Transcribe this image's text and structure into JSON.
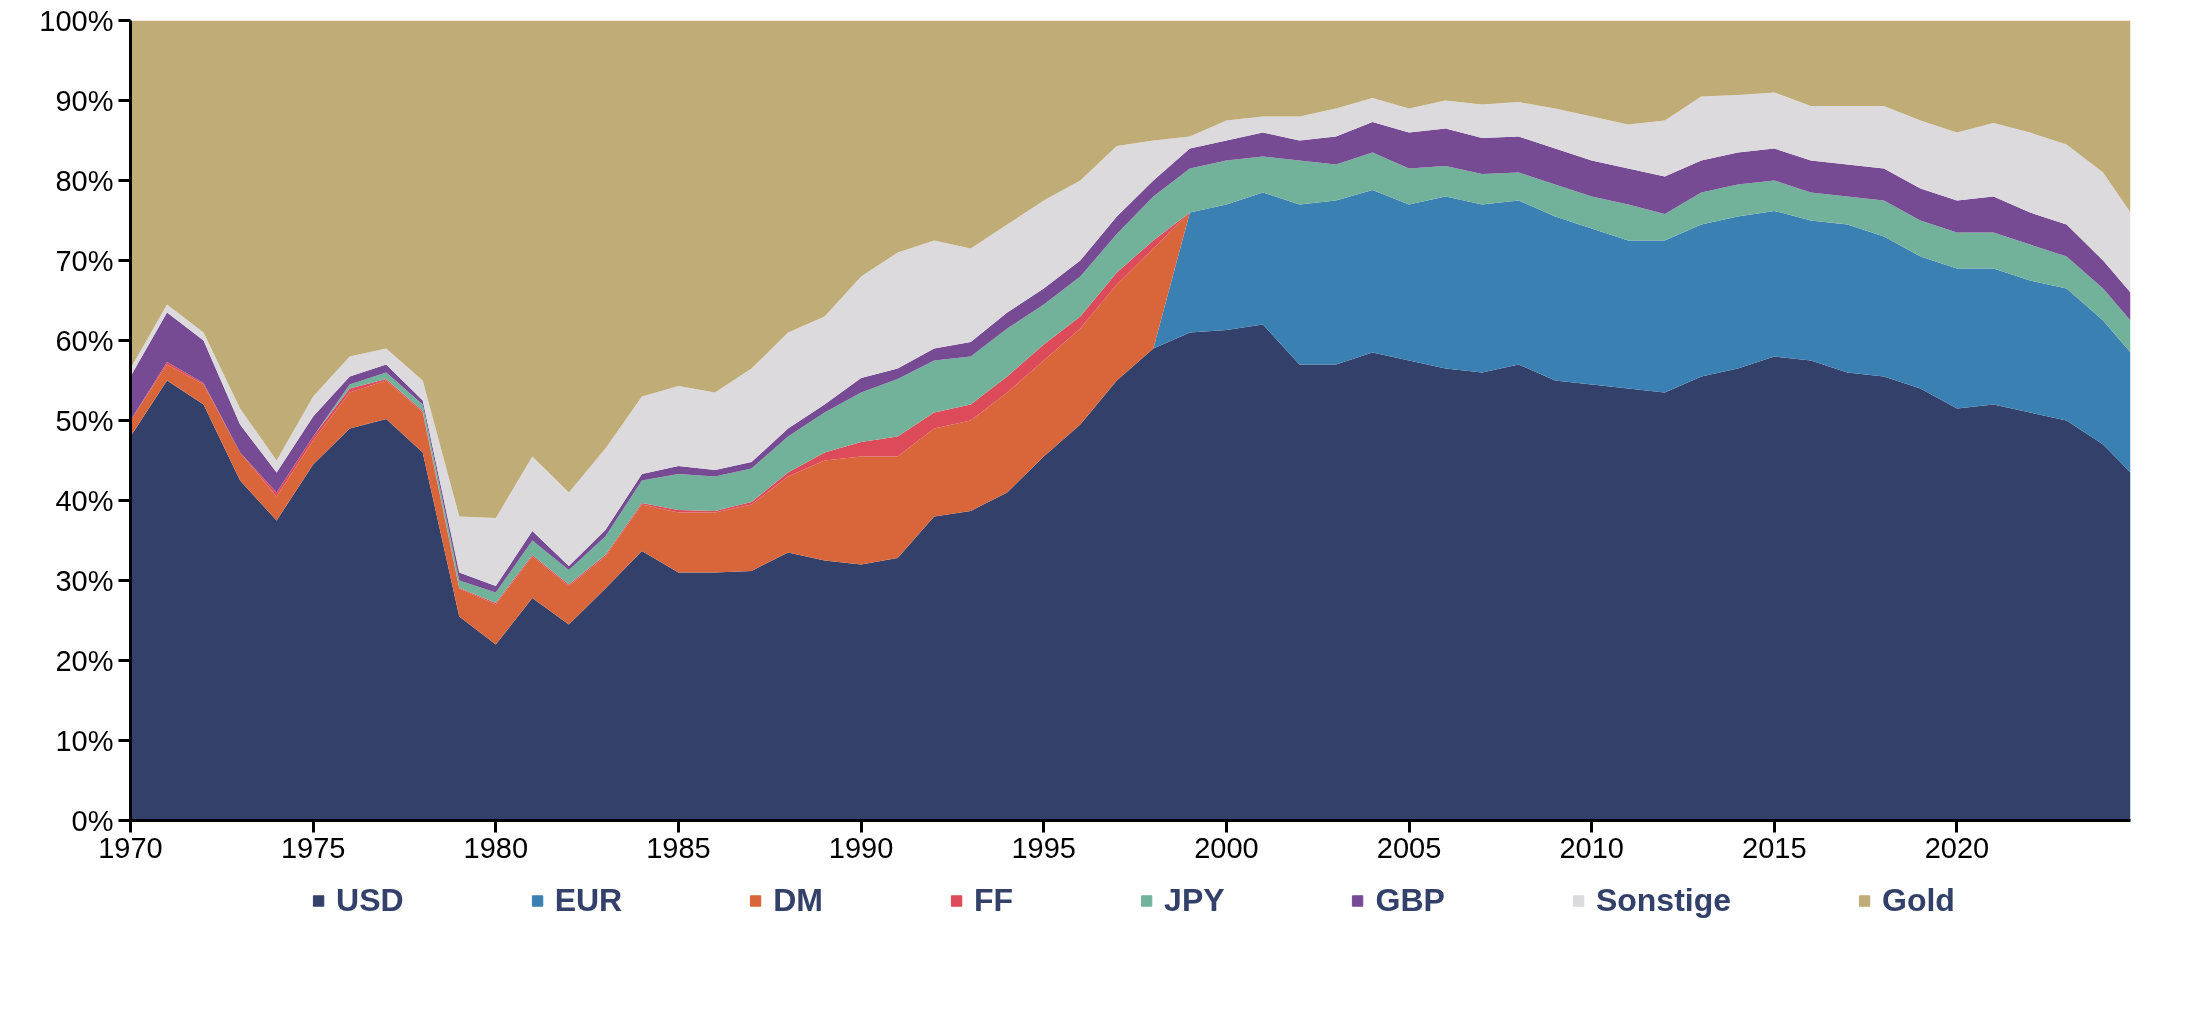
{
  "chart_data": {
    "type": "area",
    "stacked": true,
    "legend": "bottom",
    "grid": false,
    "x": [
      1970,
      1971,
      1972,
      1973,
      1974,
      1975,
      1976,
      1977,
      1978,
      1979,
      1980,
      1981,
      1982,
      1983,
      1984,
      1985,
      1986,
      1987,
      1988,
      1989,
      1990,
      1991,
      1992,
      1993,
      1994,
      1995,
      1996,
      1997,
      1998,
      1999,
      2000,
      2001,
      2002,
      2003,
      2004,
      2005,
      2006,
      2007,
      2008,
      2009,
      2010,
      2011,
      2012,
      2013,
      2014,
      2015,
      2016,
      2017,
      2018,
      2019,
      2020,
      2021,
      2022,
      2023,
      2024,
      2024.75
    ],
    "xlim": [
      1970,
      2024.75
    ],
    "xticks": [
      1970,
      1975,
      1980,
      1985,
      1990,
      1995,
      2000,
      2005,
      2010,
      2015,
      2020
    ],
    "ylim": [
      0,
      100
    ],
    "yticks": [
      {
        "value": 0,
        "label": "0%"
      },
      {
        "value": 10,
        "label": "10%"
      },
      {
        "value": 20,
        "label": "20%"
      },
      {
        "value": 30,
        "label": "30%"
      },
      {
        "value": 40,
        "label": "40%"
      },
      {
        "value": 50,
        "label": "50%"
      },
      {
        "value": 60,
        "label": "60%"
      },
      {
        "value": 70,
        "label": "70%"
      },
      {
        "value": 80,
        "label": "80%"
      },
      {
        "value": 90,
        "label": "90%"
      },
      {
        "value": 100,
        "label": "100%"
      }
    ],
    "series": [
      {
        "name": "USD",
        "color": "#33416a",
        "values": [
          48,
          55,
          52,
          42.5,
          37.5,
          44.5,
          49,
          50.2,
          46,
          25.5,
          22,
          27.8,
          24.5,
          29,
          33.7,
          31,
          31,
          31.2,
          33.5,
          32.5,
          32,
          32.8,
          38,
          38.7,
          41,
          45.5,
          49.5,
          55,
          59,
          61,
          61.3,
          62,
          57,
          57,
          58.5,
          57.5,
          56.5,
          56,
          57,
          55,
          54.5,
          54,
          53.5,
          55.5,
          56.5,
          58,
          57.5,
          56,
          55.5,
          54,
          51.5,
          52,
          51,
          50,
          47,
          43.5
        ]
      },
      {
        "name": "EUR",
        "color": "#3a80b3",
        "values": [
          null,
          null,
          null,
          null,
          null,
          null,
          null,
          null,
          null,
          null,
          null,
          null,
          null,
          null,
          null,
          null,
          null,
          null,
          null,
          null,
          null,
          null,
          null,
          null,
          null,
          null,
          null,
          null,
          0,
          15,
          15.7,
          16.5,
          20,
          20.5,
          20.3,
          19.5,
          21.5,
          21,
          20.5,
          20.5,
          19.5,
          18.5,
          19,
          19,
          19,
          18.2,
          17.5,
          18.5,
          17.5,
          16.5,
          17.5,
          17,
          16.5,
          16.5,
          15.5,
          15
        ]
      },
      {
        "name": "DM",
        "color": "#d9663a",
        "values": [
          2,
          2,
          2.5,
          3.5,
          3,
          3,
          4.5,
          4.8,
          5,
          3.5,
          5,
          5.2,
          4.8,
          4,
          5.8,
          7.5,
          7.5,
          8.3,
          9.5,
          12.5,
          13.5,
          12.7,
          11,
          11.3,
          12.5,
          12,
          12,
          12,
          12.5,
          0,
          null,
          null,
          null,
          null,
          null,
          null,
          null,
          null,
          null,
          null,
          null,
          null,
          null,
          null,
          null,
          null,
          null,
          null,
          null,
          null,
          null,
          null,
          null,
          null,
          null,
          null
        ]
      },
      {
        "name": "FF",
        "color": "#dd4a5a",
        "values": [
          0,
          0.3,
          0.2,
          0,
          0.5,
          0.5,
          0.5,
          0.2,
          0.2,
          0.1,
          0.2,
          0.2,
          0.2,
          0.2,
          0.2,
          0.3,
          0.2,
          0.3,
          0.5,
          1,
          1.8,
          2.5,
          2,
          2,
          2,
          2,
          1.5,
          1.5,
          1,
          0,
          null,
          null,
          null,
          null,
          null,
          null,
          null,
          null,
          null,
          null,
          null,
          null,
          null,
          null,
          null,
          null,
          null,
          null,
          null,
          null,
          null,
          null,
          null,
          null,
          null,
          null
        ]
      },
      {
        "name": "JPY",
        "color": "#72b29a",
        "values": [
          null,
          null,
          null,
          null,
          null,
          0,
          0.5,
          0.8,
          0.8,
          0.9,
          1.3,
          1.8,
          1.8,
          2.3,
          2.8,
          4.5,
          4.3,
          4.2,
          4.5,
          5,
          6.2,
          7.2,
          6.5,
          6,
          6,
          5,
          5,
          4.8,
          5.5,
          5.5,
          5.5,
          4.5,
          5.5,
          4.5,
          4.7,
          4.5,
          3.8,
          3.8,
          3.5,
          4,
          4,
          4.5,
          3.3,
          4,
          4,
          3.8,
          3.5,
          3.5,
          4.5,
          4.5,
          4.5,
          4.5,
          4.5,
          4,
          4,
          4
        ]
      },
      {
        "name": "GBP",
        "color": "#764b94",
        "values": [
          5.5,
          6.2,
          5.3,
          3.5,
          2.5,
          2.5,
          1,
          1,
          0.5,
          1,
          0.8,
          1.2,
          0.5,
          0.8,
          0.8,
          1,
          0.8,
          0.8,
          1,
          1,
          1.8,
          1.3,
          1.5,
          1.8,
          2,
          2,
          2,
          2.2,
          2,
          2.5,
          2.5,
          3,
          2.5,
          3.5,
          3.8,
          4.5,
          4.7,
          4.5,
          4.5,
          4.5,
          4.5,
          4.5,
          4.7,
          4,
          4,
          4,
          4,
          4,
          4,
          4,
          4,
          4.5,
          4,
          4,
          3.5,
          3.5
        ]
      },
      {
        "name": "Sonstige",
        "color": "#dcdadd",
        "values": [
          1,
          1,
          1,
          2,
          1.5,
          2.5,
          2.5,
          2,
          2.5,
          7,
          8.5,
          9.3,
          9.2,
          10.2,
          9.7,
          10,
          9.7,
          11.7,
          12,
          11,
          12.7,
          14.5,
          13.5,
          11.7,
          11,
          11,
          10,
          8.8,
          5,
          1.5,
          2.5,
          2,
          3,
          3.5,
          3,
          3,
          3.5,
          4.2,
          4.3,
          5,
          5.5,
          5.5,
          7,
          8,
          7.2,
          7,
          6.8,
          7.3,
          7.8,
          8.5,
          8.5,
          9.2,
          10,
          10,
          11,
          10
        ]
      },
      {
        "name": "Gold",
        "color": "#bfac77",
        "values": [
          43.5,
          35.5,
          39,
          48.5,
          55,
          47,
          42,
          41,
          45,
          62,
          62.2,
          54.5,
          59,
          53.5,
          47,
          45.7,
          46.5,
          43.5,
          39,
          37,
          32,
          29,
          27.5,
          28.5,
          25.5,
          22.5,
          20,
          15.7,
          15,
          14.5,
          12.5,
          12,
          12,
          11,
          9.7,
          11,
          10,
          10.5,
          10.2,
          11,
          12,
          13,
          12.5,
          9.5,
          9.3,
          9,
          10.7,
          10.7,
          10.7,
          12.5,
          14,
          12.8,
          14,
          15.5,
          19,
          24
        ]
      }
    ]
  }
}
